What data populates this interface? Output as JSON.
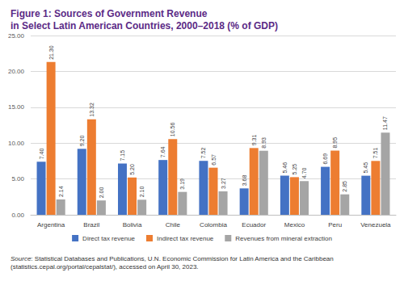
{
  "chart_data": {
    "type": "bar",
    "title": "Figure 1: Sources of Government Revenue\nin Select Latin American Countries, 2000–2018 (% of GDP)",
    "source": "Source: Statistical Databases and Publications, U.N. Economic Commission for Latin America and the Caribbean (statistics.cepal.org/portal/cepalstat/), accessed on April 30, 2023.",
    "categories": [
      "Argentina",
      "Brazil",
      "Bolivia",
      "Chile",
      "Colombia",
      "Ecuador",
      "Mexico",
      "Peru",
      "Venezuela"
    ],
    "series": [
      {
        "name": "Direct tax revenue",
        "color": "#4472c4",
        "values": [
          7.4,
          9.2,
          7.15,
          7.64,
          7.52,
          3.68,
          5.46,
          6.69,
          5.45
        ],
        "value_labels": [
          "7.40",
          "9.20",
          "7.15",
          "7.64",
          "7.52",
          "3.68",
          "5.46",
          "6.69",
          "5.45"
        ]
      },
      {
        "name": "Indirect tax revenue",
        "color": "#ed7d31",
        "values": [
          21.3,
          13.32,
          5.2,
          10.56,
          6.57,
          9.31,
          5.25,
          8.95,
          7.51
        ],
        "value_labels": [
          "21.30",
          "13.32",
          "5.20",
          "10.56",
          "6.57",
          "9.31",
          "5.25",
          "8.95",
          "7.51"
        ]
      },
      {
        "name": "Revenues from mineral extraction",
        "color": "#a5a5a5",
        "values": [
          2.14,
          2.0,
          2.1,
          3.19,
          3.27,
          8.93,
          4.7,
          2.85,
          11.47
        ],
        "value_labels": [
          "2.14",
          "2.00",
          "2.10",
          "3.19",
          "3.27",
          "8.93",
          "4.70",
          "2.85",
          "11.47"
        ]
      }
    ],
    "ylim": [
      0,
      25
    ],
    "yticks": [
      {
        "value": 0,
        "label": "0.00"
      },
      {
        "value": 5,
        "label": "5.00"
      },
      {
        "value": 10,
        "label": "10.00"
      },
      {
        "value": 15,
        "label": "15.00"
      },
      {
        "value": 20,
        "label": "20.00"
      },
      {
        "value": 25,
        "label": "25.00"
      }
    ],
    "grid": true,
    "legend": "bottom",
    "data_labels": true
  }
}
